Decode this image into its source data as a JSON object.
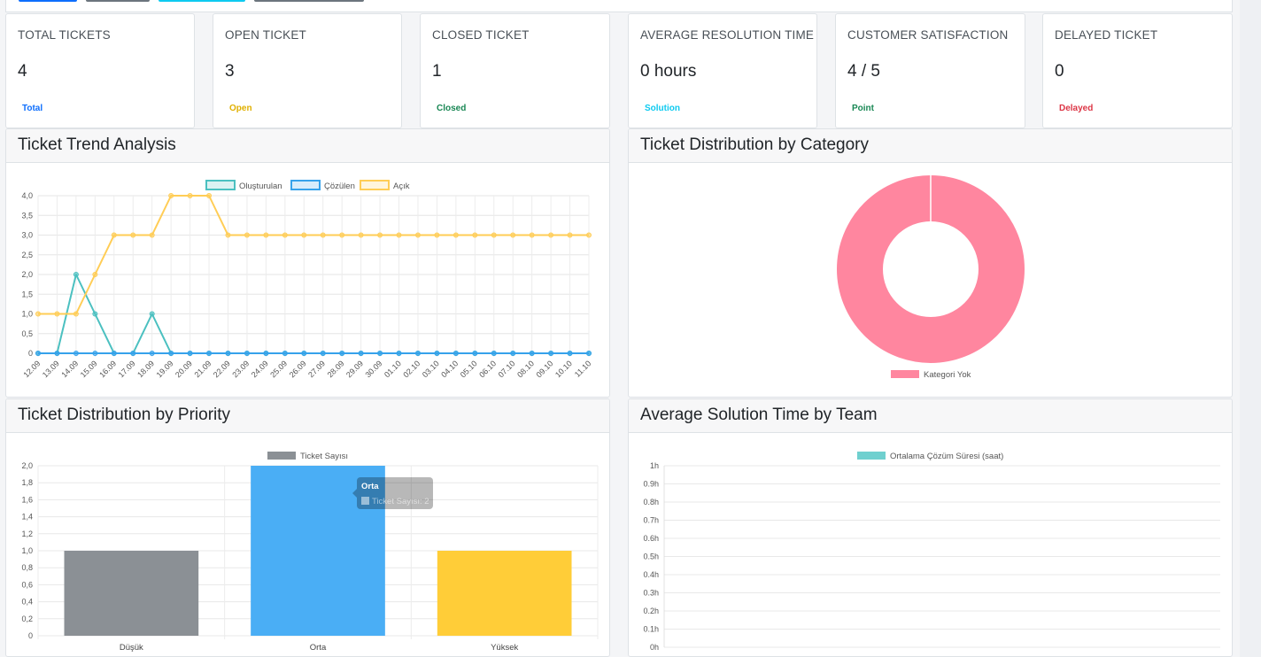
{
  "cards": [
    {
      "title": "TOTAL TICKETS",
      "value": "4",
      "badge": "Total",
      "color": "#0d6efd"
    },
    {
      "title": "OPEN TICKET",
      "value": "3",
      "badge": "Open",
      "color": "#e0b000"
    },
    {
      "title": "CLOSED TICKET",
      "value": "1",
      "badge": "Closed",
      "color": "#198754"
    },
    {
      "title": "AVERAGE RESOLUTION TIME",
      "value": "0 hours",
      "badge": "Solution",
      "color": "#0dcaf0"
    },
    {
      "title": "CUSTOMER SATISFACTION",
      "value": "4 / 5",
      "badge": "Point",
      "color": "#198754"
    },
    {
      "title": "DELAYED TICKET",
      "value": "0",
      "badge": "Delayed",
      "color": "#dc3545"
    }
  ],
  "panels": {
    "trend": "Ticket Trend Analysis",
    "category": "Ticket Distribution by Category",
    "priority": "Ticket Distribution by Priority",
    "team": "Average Solution Time by Team"
  },
  "chart_data": [
    {
      "type": "line",
      "title": "Ticket Trend Analysis",
      "x": [
        "12.09",
        "13.09",
        "14.09",
        "15.09",
        "16.09",
        "17.09",
        "18.09",
        "19.09",
        "20.09",
        "21.09",
        "22.09",
        "23.09",
        "24.09",
        "25.09",
        "26.09",
        "27.09",
        "28.09",
        "29.09",
        "30.09",
        "01.10",
        "02.10",
        "03.10",
        "04.10",
        "05.10",
        "06.10",
        "07.10",
        "08.10",
        "09.10",
        "10.10",
        "11.10"
      ],
      "ylim": [
        0,
        4
      ],
      "yticks": [
        "0",
        "0,5",
        "1,0",
        "1,5",
        "2,0",
        "2,5",
        "3,0",
        "3,5",
        "4,0"
      ],
      "legend_position": "top",
      "grid": true,
      "series": [
        {
          "name": "Oluşturulan",
          "color": "#4bc0c0",
          "values": [
            0,
            0,
            2,
            1,
            0,
            0,
            1,
            0,
            0,
            0,
            0,
            0,
            0,
            0,
            0,
            0,
            0,
            0,
            0,
            0,
            0,
            0,
            0,
            0,
            0,
            0,
            0,
            0,
            0,
            0
          ]
        },
        {
          "name": "Çözülen",
          "color": "#36a2eb",
          "values": [
            0,
            0,
            0,
            0,
            0,
            0,
            0,
            0,
            0,
            0,
            0,
            0,
            0,
            0,
            0,
            0,
            0,
            0,
            0,
            0,
            0,
            0,
            0,
            0,
            0,
            0,
            0,
            0,
            0,
            0
          ]
        },
        {
          "name": "Açık",
          "color": "#ffcd56",
          "values": [
            1,
            1,
            1,
            2,
            3,
            3,
            3,
            4,
            4,
            4,
            3,
            3,
            3,
            3,
            3,
            3,
            3,
            3,
            3,
            3,
            3,
            3,
            3,
            3,
            3,
            3,
            3,
            3,
            3,
            3
          ]
        }
      ]
    },
    {
      "type": "pie",
      "title": "Ticket Distribution by Category",
      "legend_position": "bottom",
      "categories": [
        "Kategori Yok"
      ],
      "values": [
        1
      ],
      "colors": [
        "#ff869f"
      ]
    },
    {
      "type": "bar",
      "title": "Ticket Distribution by Priority",
      "legend_position": "top",
      "series_name": "Ticket Sayısı",
      "categories": [
        "Düşük",
        "Orta",
        "Yüksek"
      ],
      "values": [
        1,
        2,
        1
      ],
      "colors": [
        "#8b9095",
        "#4aaef5",
        "#ffcd38"
      ],
      "ylim": [
        0,
        2
      ],
      "yticks": [
        "0",
        "0,2",
        "0,4",
        "0,6",
        "0,8",
        "1,0",
        "1,2",
        "1,4",
        "1,6",
        "1,8",
        "2,0"
      ],
      "tooltip": {
        "title": "Orta",
        "label": "Ticket Sayısı: 2"
      }
    },
    {
      "type": "bar",
      "title": "Average Solution Time by Team",
      "legend_position": "top",
      "series_name": "Ortalama Çözüm Süresi (saat)",
      "color": "#6fd0cf",
      "categories": [],
      "values": [],
      "ylim": [
        0,
        1
      ],
      "yticks": [
        "0h",
        "0.1h",
        "0.2h",
        "0.3h",
        "0.4h",
        "0.5h",
        "0.6h",
        "0.7h",
        "0.8h",
        "0.9h",
        "1h"
      ]
    }
  ]
}
